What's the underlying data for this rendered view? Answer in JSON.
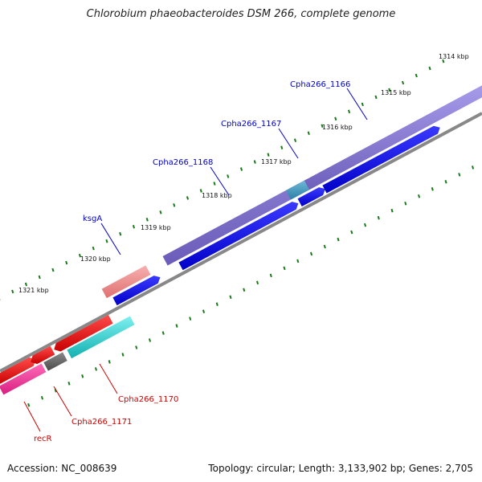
{
  "title": "Chlorobium phaeobacteroides DSM 266, complete genome",
  "footer": {
    "accession": "Accession: NC_008639",
    "summary": "Topology: circular; Length: 3,133,902 bp; Genes: 2,705"
  },
  "colors": {
    "backbone": "#8a8a8a",
    "tick": "#1a7a1a",
    "cds": "#0000e6",
    "forward_gene": "#7a6cc8",
    "rrna": "#e98080",
    "trna": "#2f8fb0",
    "reverse_gene": "#e00000",
    "cyan_gene": "#22c8c8",
    "pink_gene": "#ee3a9a",
    "gray_gene": "#666666",
    "label_forward": "#0000cc",
    "label_reverse": "#cc0000"
  },
  "ticks": [
    "1314 kbp",
    "1315 kbp",
    "1316 kbp",
    "1317 kbp",
    "1318 kbp",
    "1319 kbp",
    "1320 kbp",
    "1321 kbp"
  ],
  "gene_labels": [
    {
      "text": "Cpha266_1166",
      "strand": "forward"
    },
    {
      "text": "Cpha266_1167",
      "strand": "forward"
    },
    {
      "text": "Cpha266_1168",
      "strand": "forward"
    },
    {
      "text": "ksgA",
      "strand": "forward"
    },
    {
      "text": "Cpha266_1170",
      "strand": "reverse"
    },
    {
      "text": "Cpha266_1171",
      "strand": "reverse"
    },
    {
      "text": "recR",
      "strand": "reverse"
    }
  ]
}
